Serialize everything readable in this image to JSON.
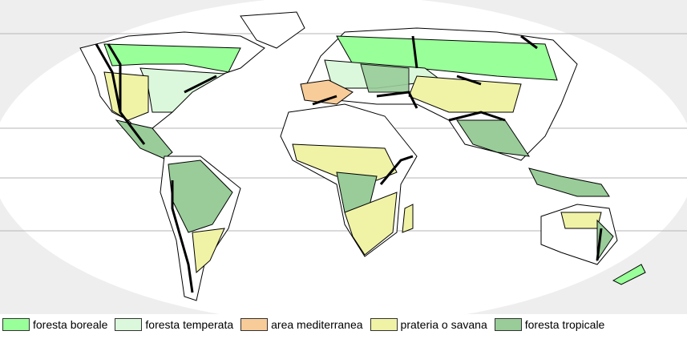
{
  "legend": [
    {
      "label": "foresta boreale",
      "color": "#99ff99"
    },
    {
      "label": "foresta temperata",
      "color": "#dcf8dc"
    },
    {
      "label": "area mediterranea",
      "color": "#f8cc98"
    },
    {
      "label": "prateria o savana",
      "color": "#f0f3a6"
    },
    {
      "label": "foresta tropicale",
      "color": "#99cc99"
    }
  ],
  "colors": {
    "land": "#ffffff",
    "outline": "#000000",
    "mountains": "#000000",
    "background": "#f0f0f0",
    "gridlines": "#b0b0b0"
  }
}
